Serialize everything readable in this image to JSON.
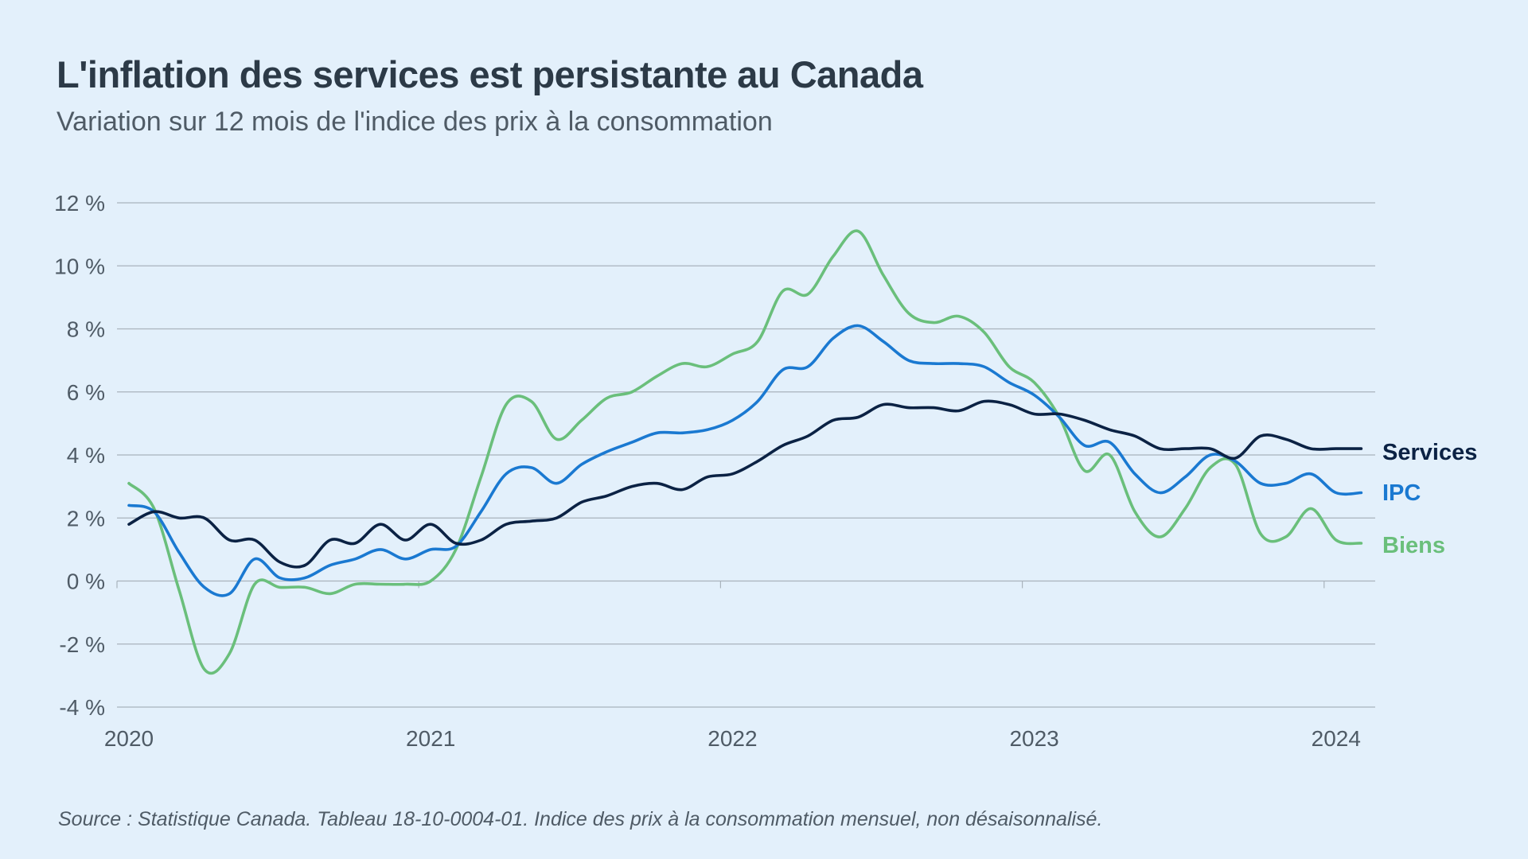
{
  "chart_data": {
    "type": "line",
    "title": "L'inflation des services est persistante au Canada",
    "subtitle": "Variation sur 12 mois de l'indice des prix à la consommation",
    "source": "Source : Statistique Canada. Tableau 18-10-0004-01. Indice des prix à la consommation mensuel, non désaisonnalisé.",
    "xlabel": "",
    "ylabel": "",
    "x_start": "2020-01",
    "x_ticks": [
      "2020",
      "2021",
      "2022",
      "2023",
      "2024"
    ],
    "y_ticks": [
      "12 %",
      "10 %",
      "8 %",
      "6 %",
      "4 %",
      "2 %",
      "0 %",
      "-2 %",
      "-4 %"
    ],
    "y_tick_values": [
      12,
      10,
      8,
      6,
      4,
      2,
      0,
      -2,
      -4
    ],
    "ylim": [
      -4,
      12
    ],
    "xlim": [
      0,
      49
    ],
    "grid": true,
    "legend_placement": "right, inline at line ends",
    "series": [
      {
        "name": "Services",
        "color": "#0b2244",
        "values": [
          1.8,
          2.2,
          2.0,
          2.0,
          1.3,
          1.3,
          0.6,
          0.5,
          1.3,
          1.2,
          1.8,
          1.3,
          1.8,
          1.2,
          1.3,
          1.8,
          1.9,
          2.0,
          2.5,
          2.7,
          3.0,
          3.1,
          2.9,
          3.3,
          3.4,
          3.8,
          4.3,
          4.6,
          5.1,
          5.2,
          5.6,
          5.5,
          5.5,
          5.4,
          5.7,
          5.6,
          5.3,
          5.3,
          5.1,
          4.8,
          4.6,
          4.2,
          4.2,
          4.2,
          3.9,
          4.6,
          4.5,
          4.2,
          4.2,
          4.2
        ]
      },
      {
        "name": "IPC",
        "color": "#1a79d1",
        "values": [
          2.4,
          2.2,
          0.9,
          -0.2,
          -0.4,
          0.7,
          0.1,
          0.1,
          0.5,
          0.7,
          1.0,
          0.7,
          1.0,
          1.1,
          2.2,
          3.4,
          3.6,
          3.1,
          3.7,
          4.1,
          4.4,
          4.7,
          4.7,
          4.8,
          5.1,
          5.7,
          6.7,
          6.8,
          7.7,
          8.1,
          7.6,
          7.0,
          6.9,
          6.9,
          6.8,
          6.3,
          5.9,
          5.2,
          4.3,
          4.4,
          3.4,
          2.8,
          3.3,
          4.0,
          3.8,
          3.1,
          3.1,
          3.4,
          2.8,
          2.8
        ]
      },
      {
        "name": "Biens",
        "color": "#6abf7b",
        "values": [
          3.1,
          2.3,
          -0.3,
          -2.8,
          -2.3,
          -0.1,
          -0.2,
          -0.2,
          -0.4,
          -0.1,
          -0.1,
          -0.1,
          0.0,
          1.0,
          3.3,
          5.6,
          5.7,
          4.5,
          5.1,
          5.8,
          6.0,
          6.5,
          6.9,
          6.8,
          7.2,
          7.6,
          9.2,
          9.1,
          10.3,
          11.1,
          9.7,
          8.5,
          8.2,
          8.4,
          7.9,
          6.8,
          6.3,
          5.2,
          3.5,
          4.0,
          2.2,
          1.4,
          2.3,
          3.6,
          3.7,
          1.5,
          1.4,
          2.3,
          1.3,
          1.2
        ]
      }
    ]
  }
}
